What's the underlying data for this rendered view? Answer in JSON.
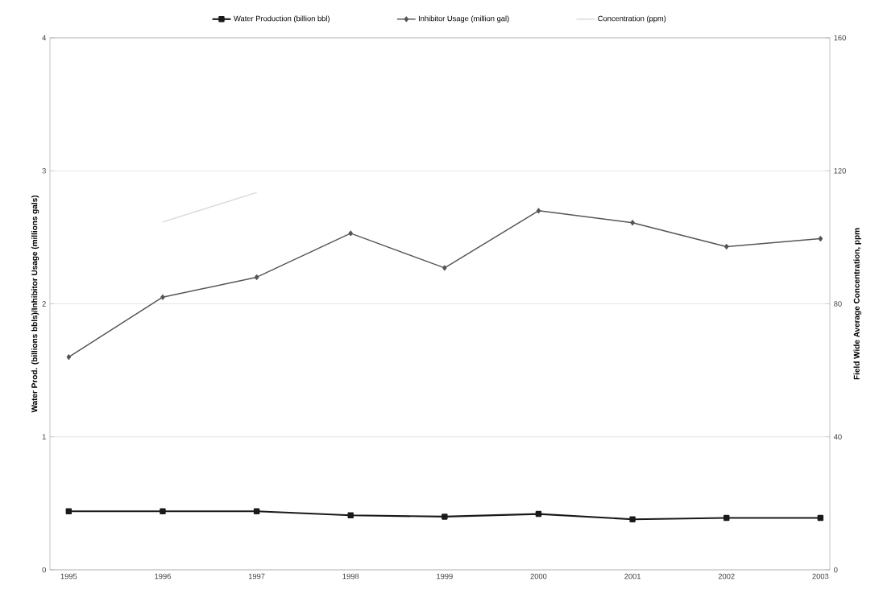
{
  "chart_data": {
    "type": "line",
    "categories": [
      "1995",
      "1996",
      "1997",
      "1998",
      "1999",
      "2000",
      "2001",
      "2002",
      "2003"
    ],
    "ylabel": "Water Prod. (billions bbls)/Inhibitor Usage (millions gals)",
    "y2label": "Field Wide Average Concentration, ppm",
    "series": [
      {
        "name": "Water Production (billion bbl)",
        "color": "#1a1a1a",
        "marker": "square",
        "values": [
          0.44,
          0.44,
          0.44,
          0.41,
          0.4,
          0.42,
          0.38,
          0.39,
          0.39
        ]
      },
      {
        "name": "Inhibitor Usage (million gal)",
        "color": "#555555",
        "marker": "diamond",
        "values": [
          1.6,
          2.05,
          2.2,
          2.53,
          2.27,
          2.7,
          2.61,
          2.43,
          2.49
        ]
      },
      {
        "name": "Concentration (ppm)",
        "color": "#d9d9d9",
        "marker": "none",
        "axis": "y2",
        "values": [
          null,
          104.6,
          113.5,
          null,
          null,
          null,
          null,
          null,
          null
        ]
      }
    ],
    "ylim": [
      0,
      4
    ],
    "yticks": [
      0,
      1,
      2,
      3,
      4
    ],
    "y2lim": [
      0,
      160
    ],
    "y2ticks": [
      0,
      40,
      80,
      120,
      160
    ],
    "grid": "y",
    "legend": "top",
    "line_style": "solid"
  }
}
